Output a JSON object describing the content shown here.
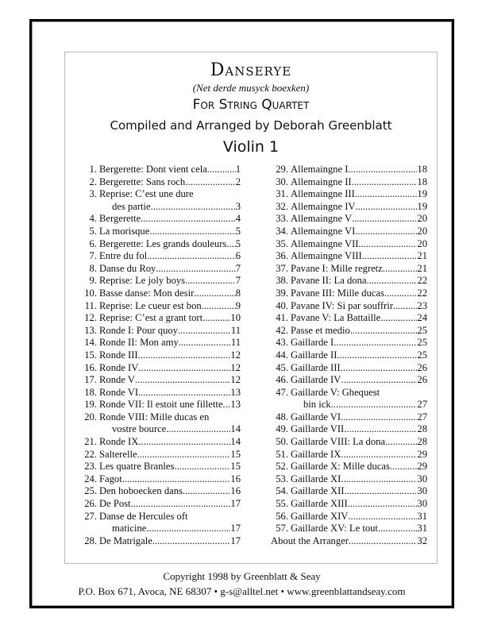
{
  "header": {
    "title": "Danserye",
    "subtitle": "(Net derde musyck boexken)",
    "for": "For String Quartet",
    "compiler": "Compiled and Arranged by Deborah Greenblatt",
    "part": "Violin 1"
  },
  "toc_left": [
    {
      "num": "1.",
      "title": "Bergerette: Dont vient cela",
      "page": "1"
    },
    {
      "num": "2.",
      "title": "Bergerette: Sans roch",
      "page": "2"
    },
    {
      "num": "3.",
      "title": "Reprise: C’est une dure",
      "cont": "des partie",
      "page": "3"
    },
    {
      "num": "4.",
      "title": "Bergerette",
      "page": "4"
    },
    {
      "num": "5.",
      "title": "La morisque",
      "page": "5"
    },
    {
      "num": "6.",
      "title": "Bergerette: Les grands douleurs",
      "page": "5"
    },
    {
      "num": "7.",
      "title": "Entre du fol",
      "page": "6"
    },
    {
      "num": "8.",
      "title": "Danse du Roy",
      "page": "7"
    },
    {
      "num": "9.",
      "title": "Reprise: Le joly boys",
      "page": "7"
    },
    {
      "num": "10.",
      "title": "Basse danse: Mon desir",
      "page": "8"
    },
    {
      "num": "11.",
      "title": "Reprise: Le cueur est bon",
      "page": "9"
    },
    {
      "num": "12.",
      "title": "Reprise: C’est a grant tort",
      "page": "10"
    },
    {
      "num": "13.",
      "title": "Ronde I: Pour quoy",
      "page": "11"
    },
    {
      "num": "14.",
      "title": "Ronde II: Mon amy",
      "page": "11"
    },
    {
      "num": "15.",
      "title": "Ronde III",
      "page": "12"
    },
    {
      "num": "16.",
      "title": "Ronde IV",
      "page": "12"
    },
    {
      "num": "17.",
      "title": "Ronde V",
      "page": "12"
    },
    {
      "num": "18.",
      "title": "Ronde VI",
      "page": "13"
    },
    {
      "num": "19.",
      "title": "Ronde VII: Il estoit une fillette",
      "page": "13"
    },
    {
      "num": "20.",
      "title": "Ronde VIII: Mille ducas en",
      "cont": "vostre bource",
      "page": "14"
    },
    {
      "num": "21.",
      "title": "Ronde IX",
      "page": "14"
    },
    {
      "num": "22.",
      "title": "Salterelle",
      "page": "15"
    },
    {
      "num": "23.",
      "title": "Les quatre Branles",
      "page": "15"
    },
    {
      "num": "24.",
      "title": "Fagot",
      "page": "16"
    },
    {
      "num": "25.",
      "title": "Den hoboecken dans",
      "page": "16"
    },
    {
      "num": "26.",
      "title": "De Post",
      "page": "17"
    },
    {
      "num": "27.",
      "title": "Danse de Hercules oft",
      "cont": "maticine",
      "page": "17"
    },
    {
      "num": "28.",
      "title": "De Matrigale",
      "page": "17"
    }
  ],
  "toc_right": [
    {
      "num": "29.",
      "title": "Allemaingne I",
      "page": "18"
    },
    {
      "num": "30.",
      "title": "Allemaingne II",
      "page": "18"
    },
    {
      "num": "31.",
      "title": "Allemaingne III",
      "page": "19"
    },
    {
      "num": "32.",
      "title": "Allemaingne IV",
      "page": "19"
    },
    {
      "num": "33.",
      "title": "Allemaingne V",
      "page": "20"
    },
    {
      "num": "34.",
      "title": "Allemaingne VI",
      "page": "20"
    },
    {
      "num": "35.",
      "title": "Allemaingne VII",
      "page": "20"
    },
    {
      "num": "36.",
      "title": "Allemaingne VIII",
      "page": "21"
    },
    {
      "num": "37.",
      "title": "Pavane I: Mille regretz",
      "page": "21"
    },
    {
      "num": "38.",
      "title": "Pavane II: La dona",
      "page": "22"
    },
    {
      "num": "39.",
      "title": "Pavane III: Mille ducas",
      "page": "22"
    },
    {
      "num": "40.",
      "title": "Pavane IV: Si par souffrir",
      "page": "23"
    },
    {
      "num": "41.",
      "title": "Pavane V: La Battaille",
      "page": "24"
    },
    {
      "num": "42.",
      "title": "Passe et medio",
      "page": "25"
    },
    {
      "num": "43.",
      "title": "Gaillarde I",
      "page": "25"
    },
    {
      "num": "44.",
      "title": "Gaillarde II",
      "page": "25"
    },
    {
      "num": "45.",
      "title": "Gaillarde III",
      "page": "26"
    },
    {
      "num": "46.",
      "title": "Gaillarde IV",
      "page": "26"
    },
    {
      "num": "47.",
      "title": "Gaillarde V: Ghequest",
      "cont": "bin ick",
      "page": "27"
    },
    {
      "num": "48.",
      "title": "Gaillarde VI",
      "page": "27"
    },
    {
      "num": "49.",
      "title": "Gaillarde VII",
      "page": "28"
    },
    {
      "num": "50.",
      "title": "Gaillarde VIII: La dona",
      "page": "28"
    },
    {
      "num": "51.",
      "title": "Gaillarde IX",
      "page": "29"
    },
    {
      "num": "52.",
      "title": "Gaillarde X: Mille ducas",
      "page": "29"
    },
    {
      "num": "53.",
      "title": "Gaillarde XI",
      "page": "30"
    },
    {
      "num": "54.",
      "title": "Gaillarde XII",
      "page": "30"
    },
    {
      "num": "55.",
      "title": "Gaillarde XIII",
      "page": "30"
    },
    {
      "num": "56.",
      "title": "Gaillarde XIV",
      "page": "31"
    },
    {
      "num": "57.",
      "title": "Gaillarde XV: Le tout",
      "page": "31"
    },
    {
      "num": "",
      "title": "About the Arranger",
      "page": "32"
    }
  ],
  "footer": {
    "copyright": "Copyright 1998 by Greenblatt & Seay",
    "contact": "P.O. Box 671, Avoca, NE 68307  •  g-s@alltel.net  •  www.greenblattandseay.com"
  }
}
